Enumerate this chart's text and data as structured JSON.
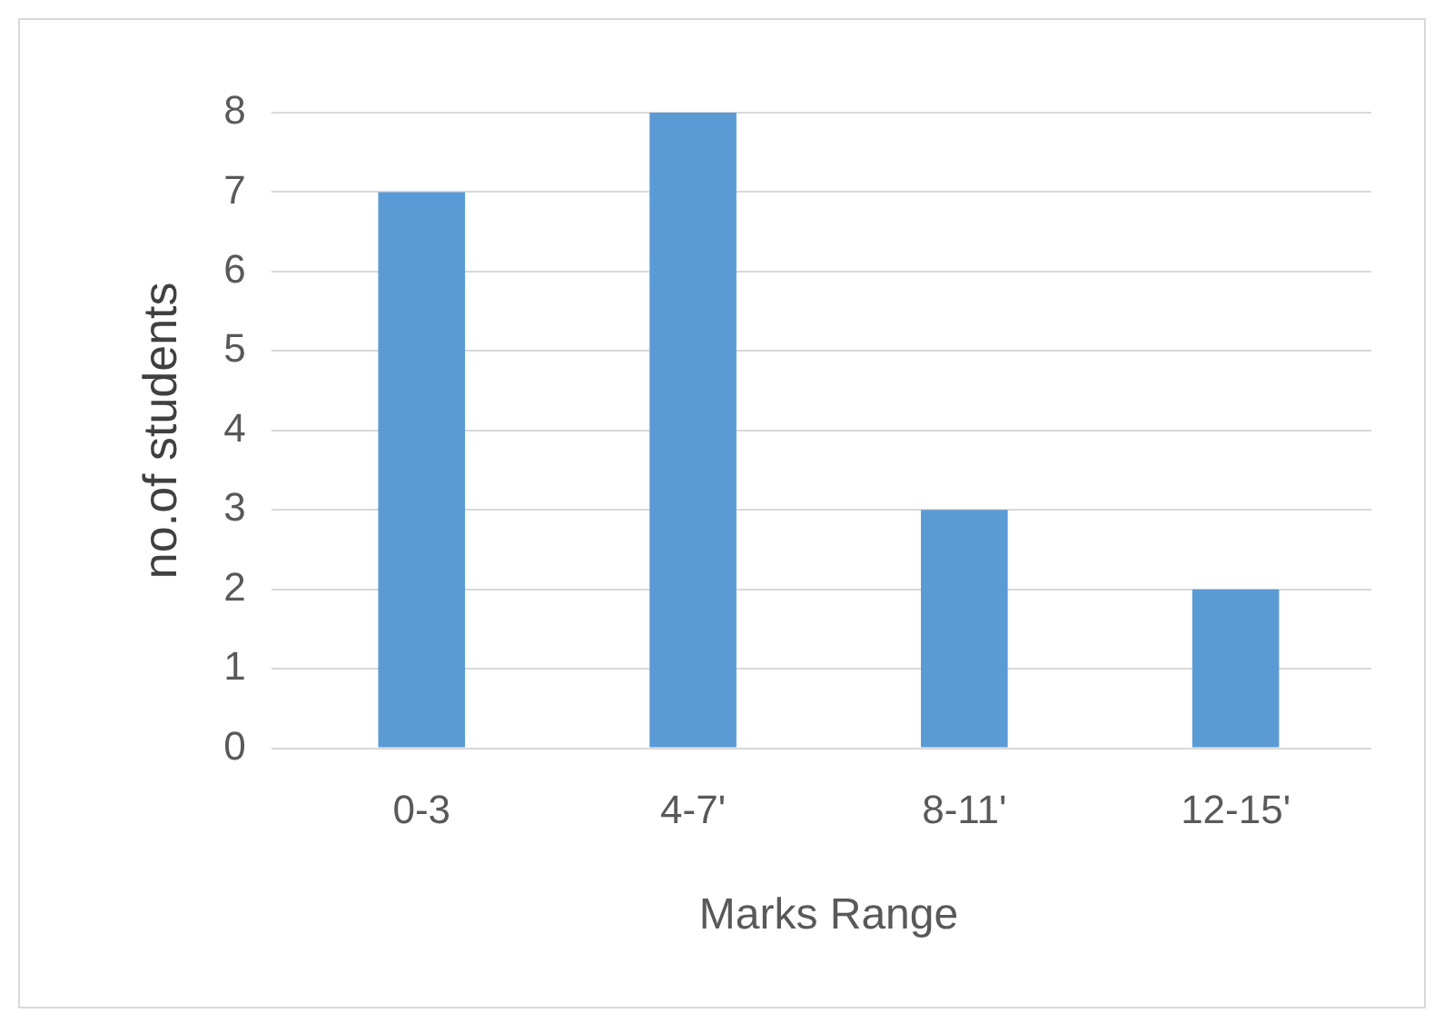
{
  "chart_data": {
    "type": "bar",
    "xlabel": "Marks Range",
    "ylabel": "no.of students",
    "categories": [
      "0-3",
      "4-7'",
      "8-11'",
      "12-15'"
    ],
    "values": [
      7,
      8,
      3,
      2
    ],
    "color": "#5b9bd5",
    "ylim": [
      0,
      8
    ],
    "yticks": [
      0,
      1,
      2,
      3,
      4,
      5,
      6,
      7,
      8
    ],
    "grid": "y",
    "legend": false
  }
}
